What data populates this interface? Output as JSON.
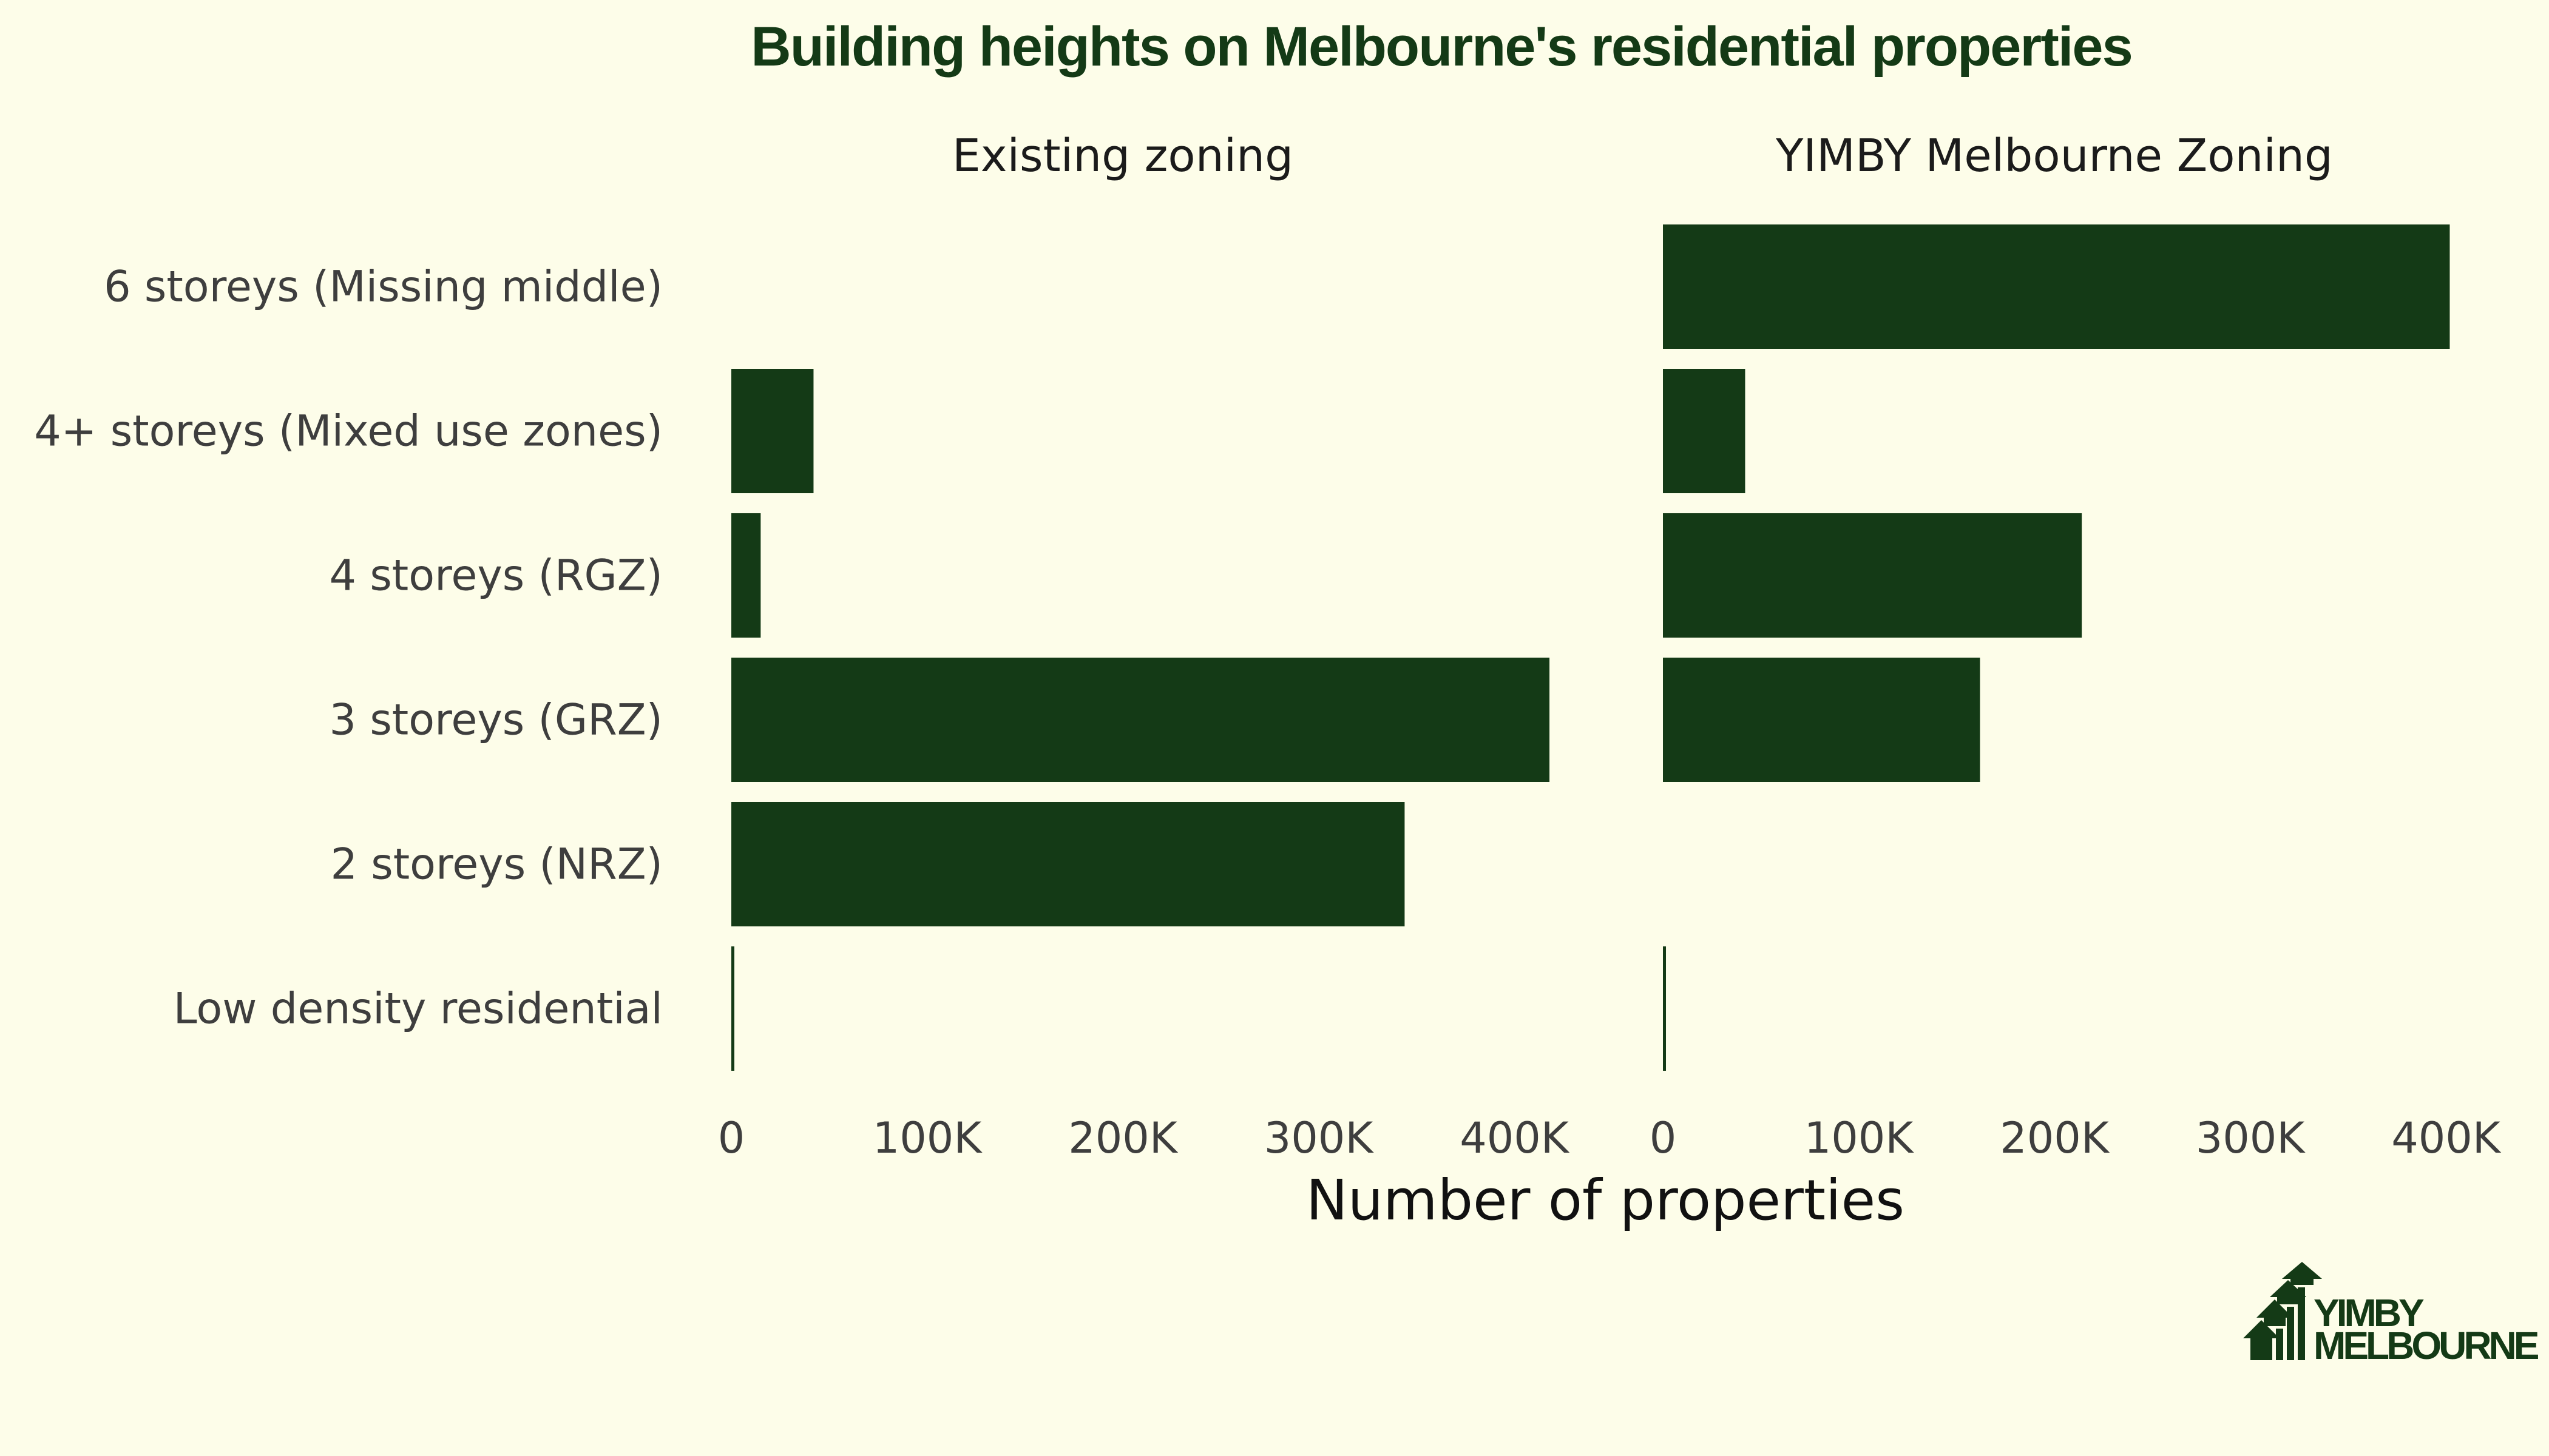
{
  "chart_data": {
    "type": "bar",
    "orientation": "horizontal",
    "title": "Building heights on Melbourne's residential properties",
    "xlabel": "Number of properties",
    "categories": [
      "6 storeys (Missing middle)",
      "4+ storeys (Mixed use zones)",
      "4 storeys (RGZ)",
      "3 storeys (GRZ)",
      "2 storeys (NRZ)",
      "Low density residential"
    ],
    "xlim": [
      0,
      400000
    ],
    "x_ticks": [
      0,
      100000,
      200000,
      300000,
      400000
    ],
    "x_tick_labels": [
      "0",
      "100K",
      "200K",
      "300K",
      "400K"
    ],
    "bar_color": "#143a16",
    "series": [
      {
        "name": "Existing zoning",
        "values": [
          0,
          42000,
          15000,
          418000,
          344000,
          1500
        ]
      },
      {
        "name": "YIMBY Melbourne Zoning",
        "values": [
          402000,
          42000,
          214000,
          162000,
          0,
          1500
        ]
      }
    ],
    "grid": false
  },
  "logo": {
    "line1": "YIMBY",
    "line2": "MELBOURNE"
  }
}
